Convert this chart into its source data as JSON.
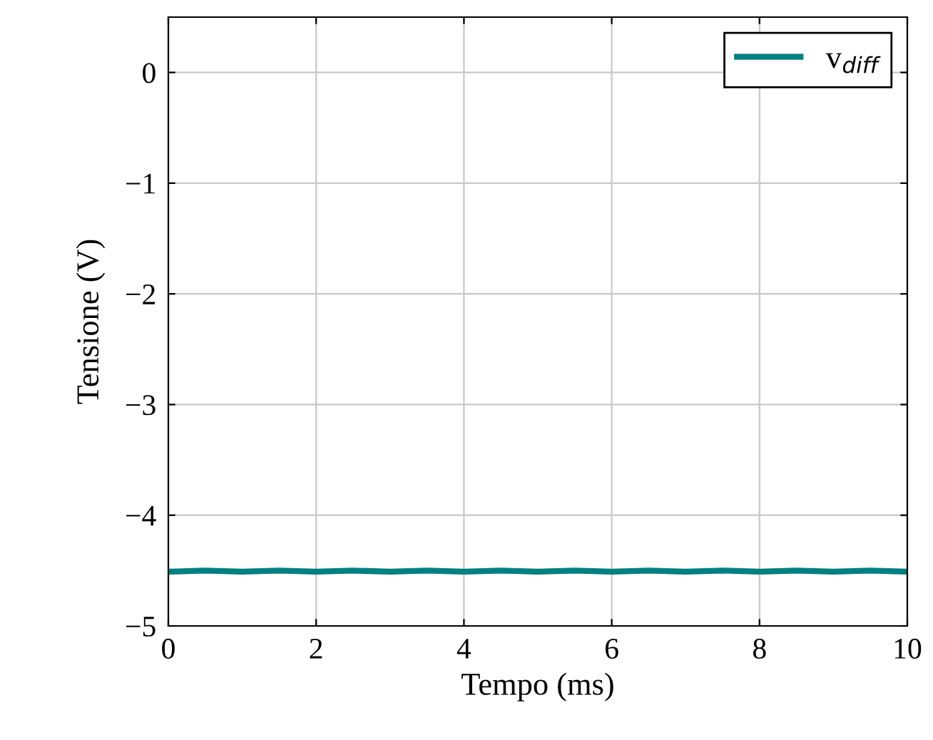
{
  "chart_data": {
    "type": "line",
    "xlabel": "Tempo (ms)",
    "ylabel": "Tensione (V)",
    "x": [
      0,
      0.5,
      1,
      1.5,
      2,
      2.5,
      3,
      3.5,
      4,
      4.5,
      5,
      5.5,
      6,
      6.5,
      7,
      7.5,
      8,
      8.5,
      9,
      9.5,
      10
    ],
    "series": [
      {
        "name": "v$_{diff}$",
        "color": "#008080",
        "values": [
          -4.51,
          -4.5,
          -4.51,
          -4.5,
          -4.51,
          -4.5,
          -4.51,
          -4.5,
          -4.51,
          -4.5,
          -4.51,
          -4.5,
          -4.51,
          -4.5,
          -4.51,
          -4.5,
          -4.51,
          -4.5,
          -4.51,
          -4.5,
          -4.51
        ]
      }
    ],
    "xlim": [
      0,
      10
    ],
    "ylim": [
      -5,
      0.5
    ],
    "xticks": [
      0,
      2,
      4,
      6,
      8,
      10
    ],
    "yticks": [
      {
        "value": -5,
        "label": "−5"
      },
      {
        "value": -4,
        "label": "−4"
      },
      {
        "value": -3,
        "label": "−3"
      },
      {
        "value": -2,
        "label": "−2"
      },
      {
        "value": -1,
        "label": "−1"
      },
      0
    ],
    "grid": true,
    "legend": "top right",
    "marker": "none",
    "line_style": "solid"
  }
}
